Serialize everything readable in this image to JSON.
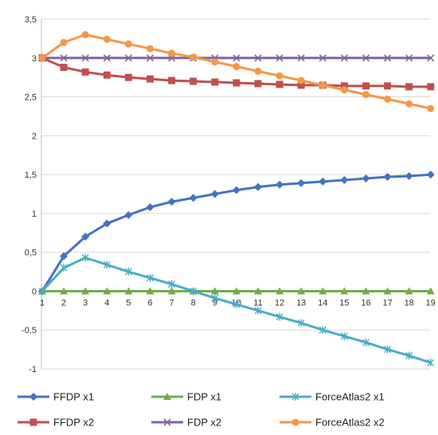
{
  "chart_data": {
    "type": "line",
    "title": "",
    "xlabel": "",
    "ylabel": "",
    "x": [
      1,
      2,
      3,
      4,
      5,
      6,
      7,
      8,
      9,
      10,
      11,
      12,
      13,
      14,
      15,
      16,
      17,
      18,
      19
    ],
    "ylim": [
      -1,
      3.5
    ],
    "yticks": [
      "3,5",
      "3",
      "2,5",
      "2",
      "1,5",
      "1",
      "0,5",
      "0",
      "-0,5",
      "-1"
    ],
    "ytick_values": [
      3.5,
      3,
      2.5,
      2,
      1.5,
      1,
      0.5,
      0,
      -0.5,
      -1
    ],
    "grid": "horizontal",
    "legend_position": "bottom",
    "series": [
      {
        "name": "FFDP x1",
        "color": "#4472C4",
        "marker": "diamond",
        "values": [
          0,
          0.45,
          0.7,
          0.87,
          0.98,
          1.08,
          1.15,
          1.2,
          1.25,
          1.3,
          1.34,
          1.37,
          1.39,
          1.41,
          1.43,
          1.45,
          1.47,
          1.48,
          1.5
        ]
      },
      {
        "name": "FDP x1",
        "color": "#70AD47",
        "marker": "triangle",
        "values": [
          0,
          0,
          0,
          0,
          0,
          0,
          0,
          0,
          0,
          0,
          0,
          0,
          0,
          0,
          0,
          0,
          0,
          0,
          0
        ]
      },
      {
        "name": "ForceAtlas2 x1",
        "color": "#4BACC6",
        "marker": "star",
        "values": [
          0,
          0.3,
          0.43,
          0.34,
          0.25,
          0.17,
          0.09,
          0,
          -0.09,
          -0.17,
          -0.25,
          -0.33,
          -0.41,
          -0.5,
          -0.58,
          -0.66,
          -0.75,
          -0.83,
          -0.92
        ]
      },
      {
        "name": "FFDP x2",
        "color": "#C0504D",
        "marker": "square",
        "values": [
          3,
          2.88,
          2.82,
          2.78,
          2.75,
          2.73,
          2.71,
          2.7,
          2.69,
          2.68,
          2.67,
          2.66,
          2.65,
          2.65,
          2.64,
          2.64,
          2.64,
          2.63,
          2.63
        ]
      },
      {
        "name": "FDP x2",
        "color": "#8064A2",
        "marker": "x",
        "values": [
          3,
          3,
          3,
          3,
          3,
          3,
          3,
          3,
          3,
          3,
          3,
          3,
          3,
          3,
          3,
          3,
          3,
          3,
          3
        ]
      },
      {
        "name": "ForceAtlas2 x2",
        "color": "#F79646",
        "marker": "circle",
        "values": [
          3,
          3.2,
          3.3,
          3.24,
          3.18,
          3.12,
          3.06,
          3.01,
          2.95,
          2.89,
          2.83,
          2.77,
          2.71,
          2.65,
          2.59,
          2.53,
          2.47,
          2.41,
          2.35
        ]
      }
    ]
  }
}
